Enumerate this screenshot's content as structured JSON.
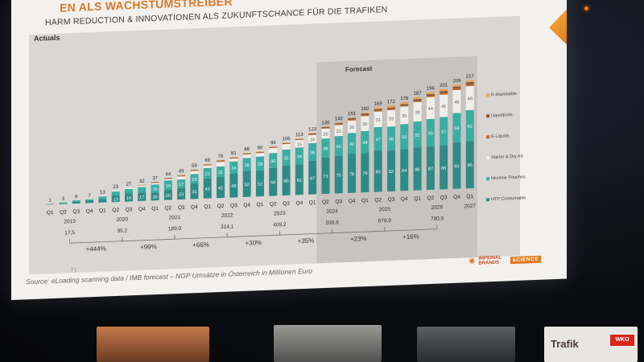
{
  "slide": {
    "title": "EN ALS WACHSTUMSTREIBER",
    "subtitle": "HARM REDUCTION & INNOVATIONEN ALS ZUKUNFTSCHANCE FÜR DIE TRAFIKEN",
    "actuals_label": "Actuals",
    "forecast_label": "Forecast",
    "source": "Source: eLoading scanning data / IMB forecast – NGP Umsätze in Österreich in Millionen Euro",
    "page_marker": "7 |",
    "logo_imperial": "IMPERIAL BRANDS",
    "logo_science": "SCIENCE"
  },
  "signage": {
    "trafik": "Trafik",
    "wko": "WKO"
  },
  "chart_data": {
    "type": "bar",
    "stacked": true,
    "title": "",
    "categories": [
      "Q1",
      "Q2",
      "Q3",
      "Q4",
      "Q1",
      "Q2",
      "Q3",
      "Q4",
      "Q1",
      "Q2",
      "Q3",
      "Q4",
      "Q1",
      "Q2",
      "Q3",
      "Q4",
      "Q1",
      "Q2",
      "Q3",
      "Q4",
      "Q1",
      "Q2",
      "Q3",
      "Q4",
      "Q1",
      "Q2",
      "Q3",
      "Q4",
      "Q1",
      "Q2",
      "Q3",
      "Q4",
      "Q1"
    ],
    "totals": [
      1,
      3,
      6,
      7,
      13,
      23,
      27,
      32,
      37,
      44,
      49,
      59,
      69,
      76,
      81,
      88,
      90,
      99,
      106,
      113,
      123,
      135,
      142,
      151,
      160,
      169,
      172,
      178,
      187,
      196,
      201,
      209,
      217
    ],
    "series": [
      {
        "name": "HTP Consumable",
        "color": "#2e8a86",
        "values": [
          1,
          2,
          4,
          5,
          7,
          13,
          16,
          17,
          16,
          20,
          23,
          31,
          40,
          42,
          48,
          52,
          52,
          56,
          60,
          61,
          67,
          73,
          75,
          78,
          79,
          83,
          82,
          84,
          86,
          87,
          88,
          93,
          95
        ]
      },
      {
        "name": "Nicotine Pouches",
        "color": "#3aada3",
        "values": [
          0,
          1,
          2,
          2,
          5,
          8,
          9,
          11,
          16,
          19,
          17,
          19,
          21,
          21,
          24,
          26,
          28,
          30,
          32,
          34,
          36,
          38,
          40,
          42,
          44,
          47,
          48,
          50,
          52,
          55,
          57,
          59,
          62
        ]
      },
      {
        "name": "Starter & Dry Kit",
        "color": "#f1eee9",
        "values": [
          0,
          0,
          0,
          0,
          1,
          2,
          2,
          3,
          3,
          3,
          6,
          6,
          5,
          9,
          6,
          7,
          7,
          10,
          11,
          15,
          16,
          20,
          22,
          25,
          30,
          31,
          33,
          35,
          39,
          44,
          45,
          46,
          48
        ]
      },
      {
        "name": "E-Liquids",
        "color": "#c46a2a",
        "values": [
          0,
          0,
          0,
          0,
          0,
          0,
          0,
          1,
          1,
          1,
          1,
          1,
          1,
          2,
          1,
          1,
          1,
          1,
          1,
          1,
          1,
          1,
          2,
          2,
          2,
          2,
          2,
          2,
          2,
          2,
          3,
          3,
          3
        ]
      },
      {
        "name": "Liquidpods",
        "color": "#8a5a3a",
        "values": [
          0,
          0,
          0,
          0,
          0,
          0,
          0,
          0,
          1,
          1,
          1,
          1,
          1,
          1,
          1,
          1,
          1,
          1,
          1,
          1,
          2,
          2,
          2,
          3,
          3,
          3,
          3,
          3,
          4,
          4,
          4,
          4,
          5
        ]
      },
      {
        "name": "E-disposable",
        "color": "#e7a35a",
        "values": [
          0,
          0,
          0,
          0,
          0,
          0,
          0,
          0,
          0,
          0,
          1,
          1,
          1,
          1,
          1,
          1,
          1,
          1,
          1,
          1,
          1,
          1,
          1,
          1,
          2,
          3,
          4,
          4,
          4,
          4,
          4,
          4,
          4
        ]
      }
    ],
    "years": [
      {
        "label": "2019",
        "total": "17,5"
      },
      {
        "label": "2020",
        "total": "95,2"
      },
      {
        "label": "2021",
        "total": "189,0"
      },
      {
        "label": "2022",
        "total": "314,1"
      },
      {
        "label": "2023",
        "total": "409,2"
      },
      {
        "label": "2024",
        "total": "550,8"
      },
      {
        "label": "2025",
        "total": "678,9"
      },
      {
        "label": "2026",
        "total": "790,9"
      },
      {
        "label": "2027",
        "total": ""
      }
    ],
    "growth_labels": [
      "+444%",
      "+99%",
      "+66%",
      "+30%",
      "+35%",
      "+23%",
      "+16%"
    ],
    "forecast_start_index": 21,
    "legend_position": "right"
  }
}
